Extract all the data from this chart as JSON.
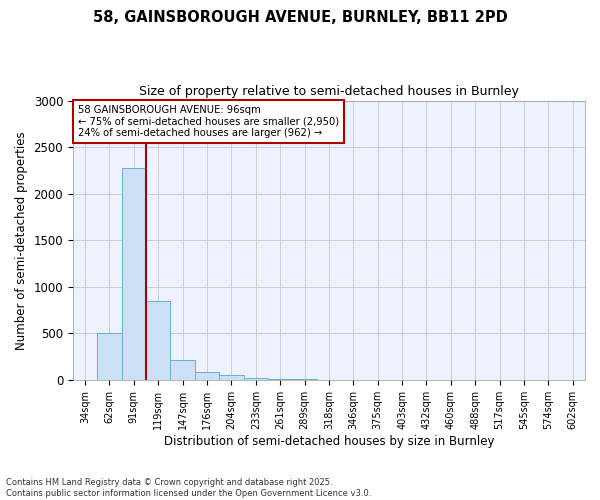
{
  "title_line1": "58, GAINSBOROUGH AVENUE, BURNLEY, BB11 2PD",
  "title_line2": "Size of property relative to semi-detached houses in Burnley",
  "xlabel": "Distribution of semi-detached houses by size in Burnley",
  "ylabel": "Number of semi-detached properties",
  "footnote": "Contains HM Land Registry data © Crown copyright and database right 2025.\nContains public sector information licensed under the Open Government Licence v3.0.",
  "categories": [
    "34sqm",
    "62sqm",
    "91sqm",
    "119sqm",
    "147sqm",
    "176sqm",
    "204sqm",
    "233sqm",
    "261sqm",
    "289sqm",
    "318sqm",
    "346sqm",
    "375sqm",
    "403sqm",
    "432sqm",
    "460sqm",
    "488sqm",
    "517sqm",
    "545sqm",
    "574sqm",
    "602sqm"
  ],
  "values": [
    0,
    500,
    2280,
    850,
    215,
    80,
    55,
    20,
    10,
    5,
    3,
    2,
    1,
    1,
    1,
    0,
    1,
    0,
    0,
    0,
    0
  ],
  "bar_color": "#cce0f5",
  "bar_edge_color": "#6baed6",
  "grid_color": "#cccccc",
  "bg_color": "#eef2ff",
  "red_line_x": 2.5,
  "annotation_title": "58 GAINSBOROUGH AVENUE: 96sqm",
  "annotation_line1": "← 75% of semi-detached houses are smaller (2,950)",
  "annotation_line2": "24% of semi-detached houses are larger (962) →",
  "annotation_box_color": "#aa0000",
  "ylim": [
    0,
    3000
  ],
  "yticks": [
    0,
    500,
    1000,
    1500,
    2000,
    2500,
    3000
  ]
}
